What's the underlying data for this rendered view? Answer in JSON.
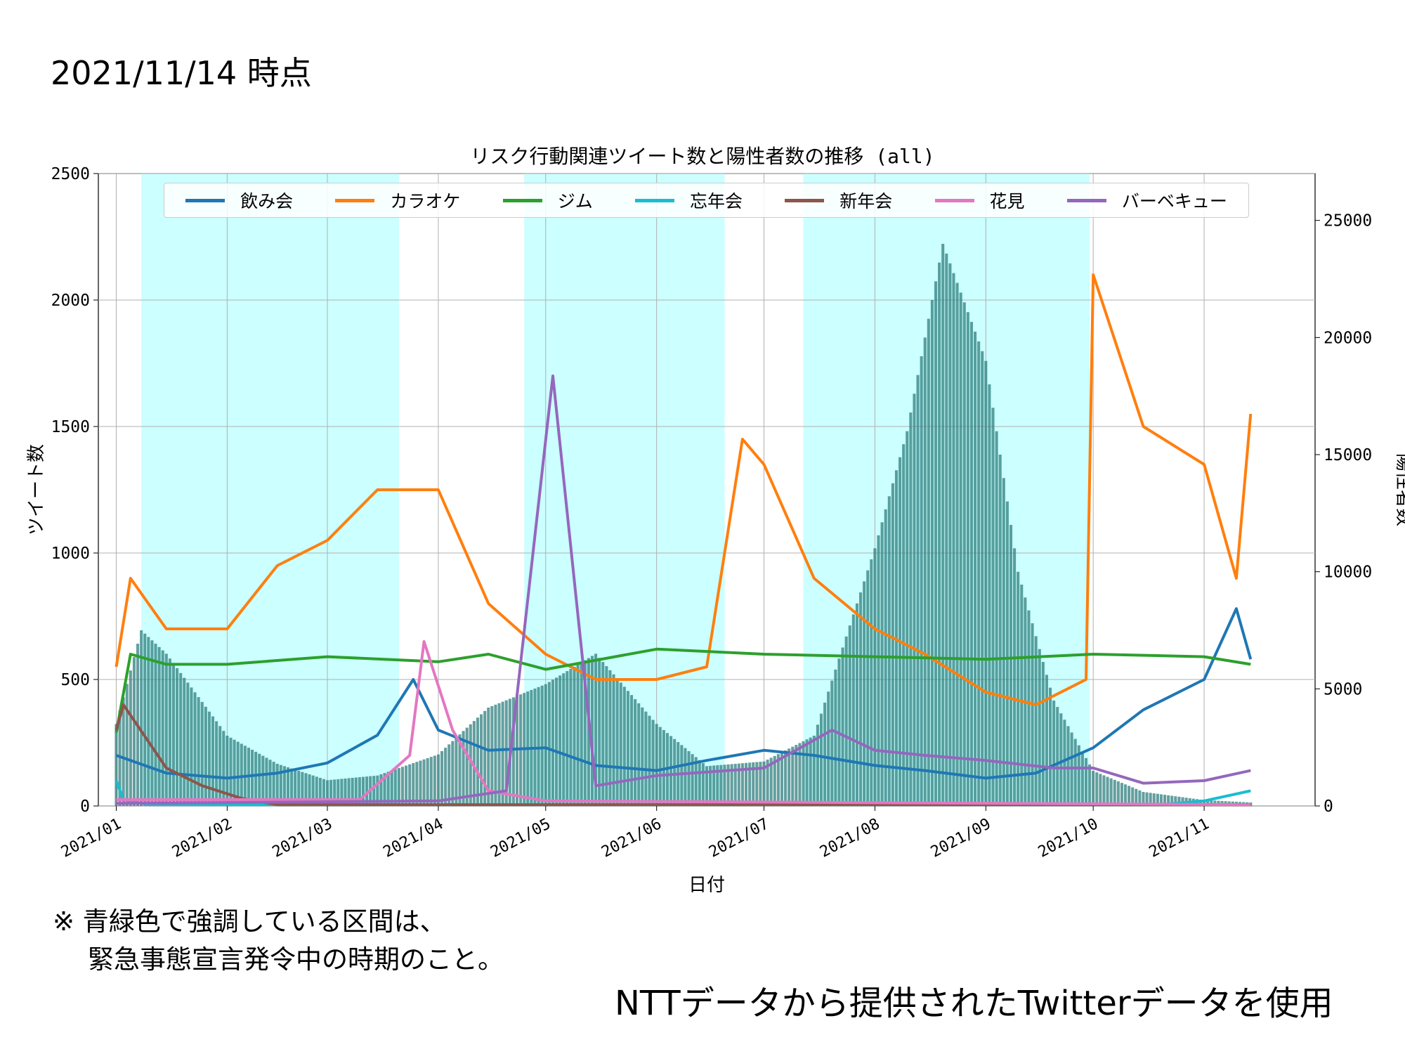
{
  "header": {
    "date": "2021/11/14 時点"
  },
  "note": {
    "line1": "※ 青緑色で強調している区間は、",
    "line2": "緊急事態宣言発令中の時期のこと。"
  },
  "source": "NTTデータから提供されたTwitterデータを使用",
  "colors": {
    "飲み会": "#1f77b4",
    "カラオケ": "#ff7f0e",
    "ジム": "#2ca02c",
    "忘年会": "#17becf",
    "新年会": "#8c564b",
    "花見": "#e377c2",
    "バーベキュー": "#9467bd",
    "emergency_band": "#ccffff",
    "positive_bars": "#2f7f7f"
  },
  "chart_data": {
    "type": "line",
    "title": "リスク行動関連ツイート数と陽性者数の推移 (all)",
    "xlabel": "日付",
    "ylabel": "ツイート数",
    "y2label": "陽性者数",
    "x_range": [
      "2021-01-01",
      "2021-11-14"
    ],
    "ylim": [
      0,
      2500
    ],
    "y2lim": [
      0,
      27000
    ],
    "yticks": [
      0,
      500,
      1000,
      1500,
      2000,
      2500
    ],
    "y2ticks": [
      0,
      5000,
      10000,
      15000,
      20000,
      25000
    ],
    "xticks": [
      "2021/01",
      "2021/02",
      "2021/03",
      "2021/04",
      "2021/05",
      "2021/06",
      "2021/07",
      "2021/08",
      "2021/09",
      "2021/10",
      "2021/11"
    ],
    "grid": true,
    "legend_position": "top",
    "emergency_periods": [
      [
        "2021-01-08",
        "2021-03-21"
      ],
      [
        "2021-04-25",
        "2021-06-20"
      ],
      [
        "2021-07-12",
        "2021-09-30"
      ]
    ],
    "series": [
      {
        "name": "飲み会",
        "x": [
          "2021-01-01",
          "2021-01-15",
          "2021-02-01",
          "2021-02-15",
          "2021-03-01",
          "2021-03-15",
          "2021-03-25",
          "2021-04-01",
          "2021-04-15",
          "2021-05-01",
          "2021-05-15",
          "2021-06-01",
          "2021-06-15",
          "2021-07-01",
          "2021-07-15",
          "2021-08-01",
          "2021-08-15",
          "2021-09-01",
          "2021-09-15",
          "2021-10-01",
          "2021-10-15",
          "2021-11-01",
          "2021-11-10",
          "2021-11-14"
        ],
        "values": [
          200,
          130,
          110,
          130,
          170,
          280,
          500,
          300,
          220,
          230,
          160,
          140,
          180,
          220,
          200,
          160,
          140,
          110,
          130,
          230,
          380,
          500,
          780,
          580
        ]
      },
      {
        "name": "カラオケ",
        "x": [
          "2021-01-01",
          "2021-01-05",
          "2021-01-15",
          "2021-02-01",
          "2021-02-15",
          "2021-03-01",
          "2021-03-15",
          "2021-04-01",
          "2021-04-15",
          "2021-05-01",
          "2021-05-15",
          "2021-06-01",
          "2021-06-15",
          "2021-06-25",
          "2021-07-01",
          "2021-07-15",
          "2021-08-01",
          "2021-08-15",
          "2021-09-01",
          "2021-09-15",
          "2021-09-29",
          "2021-10-01",
          "2021-10-15",
          "2021-11-01",
          "2021-11-10",
          "2021-11-14"
        ],
        "values": [
          550,
          900,
          700,
          700,
          950,
          1050,
          1250,
          1250,
          800,
          600,
          500,
          500,
          550,
          1450,
          1350,
          900,
          700,
          600,
          450,
          400,
          500,
          2100,
          1500,
          1350,
          900,
          1550
        ]
      },
      {
        "name": "ジム",
        "x": [
          "2021-01-01",
          "2021-01-05",
          "2021-01-15",
          "2021-02-01",
          "2021-03-01",
          "2021-04-01",
          "2021-04-15",
          "2021-05-01",
          "2021-06-01",
          "2021-07-01",
          "2021-08-01",
          "2021-09-01",
          "2021-10-01",
          "2021-11-01",
          "2021-11-14"
        ],
        "values": [
          290,
          600,
          560,
          560,
          590,
          570,
          600,
          540,
          620,
          600,
          590,
          580,
          600,
          590,
          560
        ]
      },
      {
        "name": "忘年会",
        "x": [
          "2021-01-01",
          "2021-01-03",
          "2021-01-10",
          "2021-10-20",
          "2021-11-01",
          "2021-11-14"
        ],
        "values": [
          100,
          25,
          5,
          5,
          20,
          60
        ]
      },
      {
        "name": "新年会",
        "x": [
          "2021-01-01",
          "2021-01-03",
          "2021-01-15",
          "2021-01-25",
          "2021-02-05",
          "2021-02-15",
          "2021-11-14"
        ],
        "values": [
          300,
          400,
          150,
          80,
          30,
          5,
          5
        ]
      },
      {
        "name": "花見",
        "x": [
          "2021-01-01",
          "2021-03-10",
          "2021-03-24",
          "2021-03-28",
          "2021-04-05",
          "2021-04-15",
          "2021-05-01",
          "2021-11-14"
        ],
        "values": [
          25,
          25,
          200,
          650,
          300,
          60,
          20,
          5
        ]
      },
      {
        "name": "バーベキュー",
        "x": [
          "2021-01-01",
          "2021-04-01",
          "2021-04-20",
          "2021-05-03",
          "2021-05-15",
          "2021-06-01",
          "2021-07-01",
          "2021-07-20",
          "2021-08-01",
          "2021-08-15",
          "2021-09-01",
          "2021-09-20",
          "2021-10-01",
          "2021-10-15",
          "2021-11-01",
          "2021-11-14"
        ],
        "values": [
          10,
          20,
          60,
          1700,
          80,
          120,
          150,
          300,
          220,
          200,
          180,
          150,
          150,
          90,
          100,
          140
        ]
      }
    ],
    "positive_cases": {
      "name": "陽性者数",
      "axis": "right",
      "x": [
        "2021-01-01",
        "2021-01-08",
        "2021-01-15",
        "2021-02-01",
        "2021-02-15",
        "2021-03-01",
        "2021-03-15",
        "2021-04-01",
        "2021-04-15",
        "2021-05-01",
        "2021-05-15",
        "2021-06-01",
        "2021-06-15",
        "2021-07-01",
        "2021-07-15",
        "2021-08-01",
        "2021-08-10",
        "2021-08-20",
        "2021-09-01",
        "2021-09-10",
        "2021-09-20",
        "2021-10-01",
        "2021-10-15",
        "2021-11-01",
        "2021-11-14"
      ],
      "values": [
        3500,
        7500,
        6500,
        3000,
        1800,
        1100,
        1300,
        2200,
        4200,
        5200,
        6500,
        3500,
        1700,
        1900,
        3000,
        11000,
        16000,
        24000,
        19000,
        10000,
        4500,
        1500,
        600,
        250,
        150
      ]
    }
  }
}
